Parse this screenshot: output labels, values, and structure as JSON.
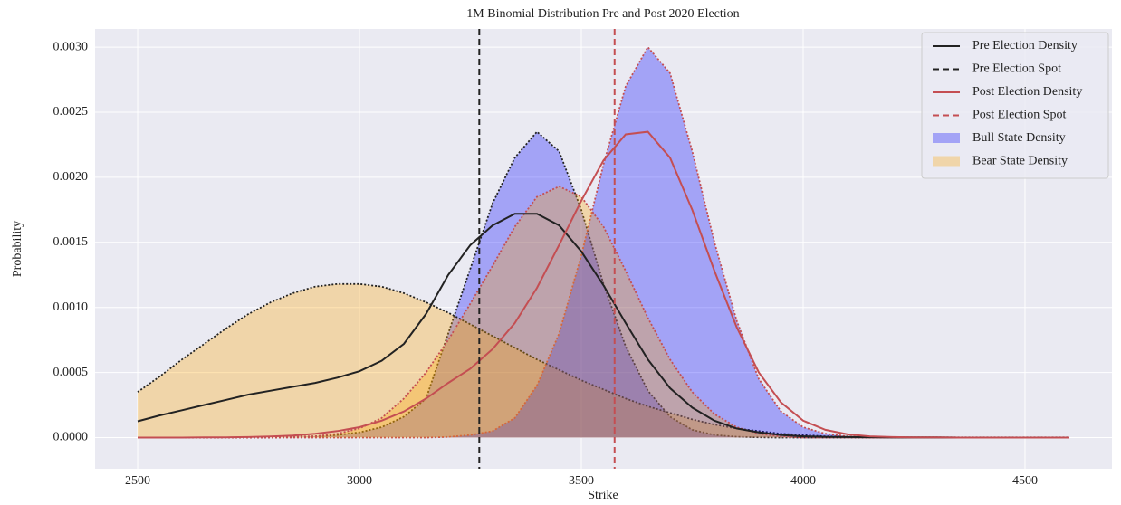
{
  "chart_data": {
    "type": "line",
    "title": "1M Binomial Distribution Pre and Post 2020 Election",
    "xlabel": "Strike",
    "ylabel": "Probability",
    "x": [
      2500,
      2550,
      2600,
      2650,
      2700,
      2750,
      2800,
      2850,
      2900,
      2950,
      3000,
      3050,
      3100,
      3150,
      3200,
      3250,
      3300,
      3350,
      3400,
      3450,
      3500,
      3550,
      3600,
      3650,
      3700,
      3750,
      3800,
      3850,
      3900,
      3950,
      4000,
      4050,
      4100,
      4150,
      4200,
      4250,
      4300,
      4350,
      4400,
      4450,
      4500,
      4550,
      4600
    ],
    "xlim": [
      2404,
      4696
    ],
    "xticks": [
      2500,
      3000,
      3500,
      4000,
      4500
    ],
    "ylim": [
      -0.00024,
      0.00314
    ],
    "yticks": [
      {
        "value": 0,
        "label": "0.0000"
      },
      {
        "value": 0.0005,
        "label": "0.0005"
      },
      {
        "value": 0.001,
        "label": "0.0010"
      },
      {
        "value": 0.0015,
        "label": "0.0015"
      },
      {
        "value": 0.002,
        "label": "0.0020"
      },
      {
        "value": 0.0025,
        "label": "0.0025"
      },
      {
        "value": 0.003,
        "label": "0.0030"
      }
    ],
    "grid": true,
    "legend": "upper right",
    "series": [
      {
        "name": "Pre Election Density",
        "kind": "line",
        "color": "#222222",
        "linestyle": "solid",
        "values": [
          0.000125,
          0.00017,
          0.00021,
          0.00025,
          0.00029,
          0.00033,
          0.00036,
          0.00039,
          0.00042,
          0.00046,
          0.00051,
          0.00059,
          0.00072,
          0.00095,
          0.00125,
          0.00148,
          0.00163,
          0.00172,
          0.00172,
          0.00163,
          0.00143,
          0.00117,
          0.00088,
          0.0006,
          0.00038,
          0.00023,
          0.00013,
          7e-05,
          4e-05,
          2e-05,
          1e-05,
          6e-06,
          4e-06,
          3e-06,
          2e-06,
          1e-06,
          1e-06,
          0,
          0,
          0,
          0,
          0,
          0
        ]
      },
      {
        "name": "Pre Election Spot",
        "kind": "vline",
        "color": "#222222",
        "linestyle": "dashed",
        "value": 3270
      },
      {
        "name": "Post Election Density",
        "kind": "line",
        "color": "#c44e52",
        "linestyle": "solid",
        "values": [
          0,
          0,
          0,
          1e-06,
          2e-06,
          4e-06,
          8e-06,
          1.5e-05,
          3e-05,
          5e-05,
          8e-05,
          0.00013,
          0.0002,
          0.0003,
          0.00042,
          0.00053,
          0.00068,
          0.00088,
          0.00115,
          0.00148,
          0.00182,
          0.00213,
          0.00233,
          0.00235,
          0.00215,
          0.00175,
          0.00128,
          0.00085,
          0.0005,
          0.00027,
          0.00013,
          6e-05,
          2.5e-05,
          1e-05,
          4e-06,
          2e-06,
          1e-06,
          0,
          0,
          0,
          0,
          0,
          0
        ]
      },
      {
        "name": "Post Election Spot",
        "kind": "vline",
        "color": "#c44e52",
        "linestyle": "dashed",
        "value": 3575
      },
      {
        "name": "Bull State Density",
        "kind": "area",
        "color": "#0000ff",
        "alpha": 0.3,
        "edgecolor": "#222222",
        "linestyle": "dotted",
        "values": [
          0,
          0,
          0,
          0,
          0,
          0,
          0,
          5e-06,
          1e-05,
          2e-05,
          4e-05,
          8e-05,
          0.00016,
          0.0003,
          0.0008,
          0.0013,
          0.0018,
          0.00215,
          0.00235,
          0.0022,
          0.00175,
          0.00118,
          0.0007,
          0.00036,
          0.00016,
          6e-05,
          2e-05,
          6e-06,
          2e-06,
          0,
          0,
          0,
          0,
          0,
          0,
          0,
          0,
          0,
          0,
          0,
          0,
          0,
          0
        ]
      },
      {
        "name": "Bear State Density",
        "kind": "area",
        "color": "#ffa500",
        "alpha": 0.3,
        "edgecolor": "#222222",
        "linestyle": "dotted",
        "values": [
          0.00035,
          0.00047,
          0.0006,
          0.00072,
          0.00084,
          0.00095,
          0.00104,
          0.00111,
          0.00116,
          0.00118,
          0.00118,
          0.00116,
          0.00111,
          0.00104,
          0.00096,
          0.00087,
          0.00078,
          0.00069,
          0.0006,
          0.00052,
          0.00044,
          0.00037,
          0.0003,
          0.00024,
          0.00019,
          0.00014,
          0.0001,
          7e-05,
          5e-05,
          3e-05,
          2e-05,
          1e-05,
          6e-06,
          3e-06,
          1e-06,
          1e-06,
          1e-06,
          1e-06,
          1e-06,
          1e-06,
          1e-06,
          1e-06,
          1e-06
        ]
      },
      {
        "kind": "area",
        "color": "#0000ff",
        "alpha": 0.3,
        "edgecolor": "#c44e52",
        "linestyle": "dotted",
        "values": [
          0,
          0,
          0,
          0,
          0,
          0,
          0,
          0,
          0,
          0,
          0,
          0,
          0,
          0,
          5e-06,
          2e-05,
          5e-05,
          0.00015,
          0.0004,
          0.0008,
          0.0014,
          0.0021,
          0.0027,
          0.003,
          0.0028,
          0.0022,
          0.0015,
          0.0009,
          0.00045,
          0.0002,
          8e-05,
          3e-05,
          1e-05,
          0,
          0,
          0,
          0,
          0,
          0,
          0,
          0,
          0,
          0
        ]
      },
      {
        "kind": "area",
        "color": "#ffa500",
        "alpha": 0.3,
        "edgecolor": "#c44e52",
        "linestyle": "dotted",
        "values": [
          0,
          0,
          0,
          0,
          0,
          0,
          0,
          4e-06,
          1e-05,
          3e-05,
          7e-05,
          0.00015,
          0.0003,
          0.0005,
          0.00075,
          0.00103,
          0.00132,
          0.00162,
          0.00185,
          0.00193,
          0.00185,
          0.00162,
          0.00128,
          0.00092,
          0.0006,
          0.00035,
          0.00018,
          8e-05,
          3e-05,
          1e-05,
          0,
          0,
          0,
          0,
          0,
          0,
          0,
          0,
          0,
          0,
          0,
          0,
          0
        ]
      }
    ]
  }
}
